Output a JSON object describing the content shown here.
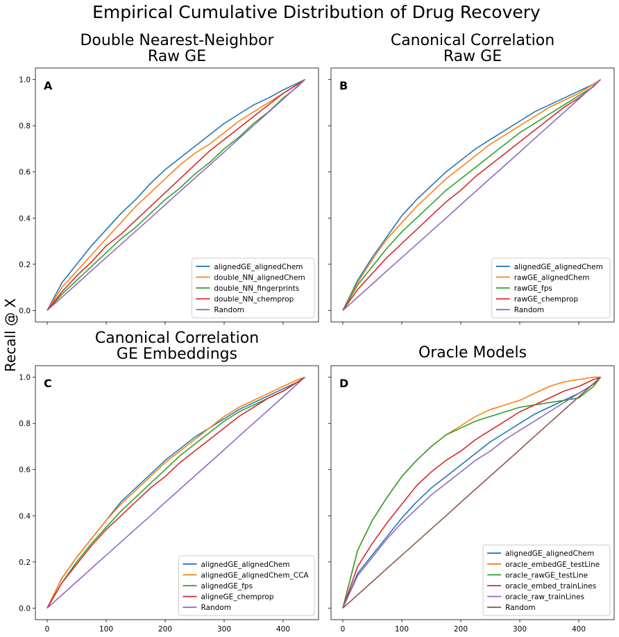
{
  "figure": {
    "title": "Empirical Cumulative Distribution of Drug Recovery",
    "ylabel": "Recall @ X"
  },
  "colors": {
    "blue": "#1f77b4",
    "orange": "#ff7f0e",
    "green": "#2ca02c",
    "red": "#d62728",
    "purple": "#9467bd",
    "brown": "#8c564b"
  },
  "chart_data": [
    {
      "type": "line",
      "panel": "A",
      "title": [
        "Double Nearest-Neighbor",
        "Raw GE"
      ],
      "xlim": [
        -20,
        460
      ],
      "ylim": [
        -0.05,
        1.05
      ],
      "xticks": [
        0,
        100,
        200,
        300,
        400
      ],
      "yticks": [
        "0.0",
        "0.2",
        "0.4",
        "0.6",
        "0.8",
        "1.0"
      ],
      "show_xticklabels": false,
      "show_yticklabels": true,
      "legend": "lower-right",
      "x": [
        0,
        25,
        50,
        75,
        100,
        125,
        150,
        175,
        200,
        225,
        250,
        275,
        300,
        325,
        350,
        375,
        400,
        425,
        437
      ],
      "series": [
        {
          "name": "alignedGE_alignedChem",
          "color": "#1f77b4",
          "values": [
            0,
            0.12,
            0.2,
            0.28,
            0.35,
            0.42,
            0.48,
            0.55,
            0.61,
            0.66,
            0.71,
            0.76,
            0.81,
            0.85,
            0.89,
            0.92,
            0.955,
            0.985,
            1.0
          ]
        },
        {
          "name": "double_NN_alignedChem",
          "color": "#ff7f0e",
          "values": [
            0,
            0.1,
            0.17,
            0.24,
            0.31,
            0.38,
            0.45,
            0.51,
            0.57,
            0.63,
            0.68,
            0.72,
            0.77,
            0.82,
            0.86,
            0.9,
            0.94,
            0.98,
            1.0
          ]
        },
        {
          "name": "double_NN_fingerprints",
          "color": "#2ca02c",
          "values": [
            0,
            0.07,
            0.13,
            0.19,
            0.25,
            0.31,
            0.36,
            0.42,
            0.48,
            0.53,
            0.59,
            0.64,
            0.7,
            0.75,
            0.81,
            0.86,
            0.92,
            0.97,
            1.0
          ]
        },
        {
          "name": "double_NN_chemprop",
          "color": "#d62728",
          "values": [
            0,
            0.08,
            0.15,
            0.21,
            0.28,
            0.33,
            0.39,
            0.45,
            0.51,
            0.57,
            0.63,
            0.69,
            0.74,
            0.79,
            0.84,
            0.89,
            0.94,
            0.98,
            1.0
          ]
        },
        {
          "name": "Random",
          "color": "#9467bd",
          "values": [
            0,
            0.057,
            0.114,
            0.172,
            0.229,
            0.286,
            0.343,
            0.4,
            0.458,
            0.515,
            0.572,
            0.629,
            0.686,
            0.744,
            0.801,
            0.858,
            0.915,
            0.973,
            1.0
          ]
        }
      ]
    },
    {
      "type": "line",
      "panel": "B",
      "title": [
        "Canonical Correlation",
        "Raw GE"
      ],
      "xlim": [
        -20,
        460
      ],
      "ylim": [
        -0.05,
        1.05
      ],
      "xticks": [
        0,
        100,
        200,
        300,
        400
      ],
      "yticks": [
        "0.0",
        "0.2",
        "0.4",
        "0.6",
        "0.8",
        "1.0"
      ],
      "show_xticklabels": false,
      "show_yticklabels": false,
      "legend": "lower-right",
      "x": [
        0,
        25,
        50,
        75,
        100,
        125,
        150,
        175,
        200,
        225,
        250,
        275,
        300,
        325,
        350,
        375,
        400,
        425,
        437
      ],
      "series": [
        {
          "name": "alignedGE_alignedChem",
          "color": "#1f77b4",
          "values": [
            0,
            0.13,
            0.23,
            0.32,
            0.41,
            0.48,
            0.54,
            0.6,
            0.65,
            0.7,
            0.74,
            0.78,
            0.82,
            0.86,
            0.89,
            0.92,
            0.95,
            0.98,
            1.0
          ]
        },
        {
          "name": "rawGE_alignedChem",
          "color": "#ff7f0e",
          "values": [
            0,
            0.12,
            0.22,
            0.31,
            0.38,
            0.45,
            0.51,
            0.57,
            0.62,
            0.67,
            0.72,
            0.76,
            0.8,
            0.84,
            0.88,
            0.91,
            0.94,
            0.98,
            1.0
          ]
        },
        {
          "name": "rawGE_fps",
          "color": "#2ca02c",
          "values": [
            0,
            0.11,
            0.19,
            0.27,
            0.34,
            0.4,
            0.46,
            0.52,
            0.57,
            0.62,
            0.67,
            0.72,
            0.77,
            0.81,
            0.85,
            0.89,
            0.93,
            0.97,
            1.0
          ]
        },
        {
          "name": "rawGE_chemprop",
          "color": "#d62728",
          "values": [
            0,
            0.09,
            0.16,
            0.23,
            0.29,
            0.35,
            0.41,
            0.47,
            0.52,
            0.58,
            0.63,
            0.68,
            0.73,
            0.78,
            0.83,
            0.88,
            0.92,
            0.97,
            1.0
          ]
        },
        {
          "name": "Random",
          "color": "#9467bd",
          "values": [
            0,
            0.057,
            0.114,
            0.172,
            0.229,
            0.286,
            0.343,
            0.4,
            0.458,
            0.515,
            0.572,
            0.629,
            0.686,
            0.744,
            0.801,
            0.858,
            0.915,
            0.973,
            1.0
          ]
        }
      ]
    },
    {
      "type": "line",
      "panel": "C",
      "title": [
        "Canonical Correlation",
        "GE Embeddings"
      ],
      "xlim": [
        -20,
        460
      ],
      "ylim": [
        -0.05,
        1.05
      ],
      "xticks": [
        0,
        100,
        200,
        300,
        400
      ],
      "yticks": [
        "0.0",
        "0.2",
        "0.4",
        "0.6",
        "0.8",
        "1.0"
      ],
      "show_xticklabels": true,
      "show_yticklabels": true,
      "legend": "lower-right",
      "x": [
        0,
        25,
        50,
        75,
        100,
        125,
        150,
        175,
        200,
        225,
        250,
        275,
        300,
        325,
        350,
        375,
        400,
        425,
        437
      ],
      "series": [
        {
          "name": "alignedGE_alignedChem",
          "color": "#1f77b4",
          "values": [
            0,
            0.13,
            0.22,
            0.3,
            0.38,
            0.46,
            0.52,
            0.58,
            0.64,
            0.69,
            0.74,
            0.78,
            0.82,
            0.86,
            0.89,
            0.92,
            0.95,
            0.98,
            1.0
          ]
        },
        {
          "name": "alignedGE_alignedChem_CCA",
          "color": "#ff7f0e",
          "values": [
            0,
            0.13,
            0.22,
            0.3,
            0.38,
            0.45,
            0.51,
            0.57,
            0.63,
            0.68,
            0.73,
            0.78,
            0.83,
            0.87,
            0.9,
            0.93,
            0.96,
            0.99,
            1.0
          ]
        },
        {
          "name": "alignedGE_fps",
          "color": "#2ca02c",
          "values": [
            0,
            0.11,
            0.2,
            0.28,
            0.35,
            0.42,
            0.48,
            0.54,
            0.6,
            0.66,
            0.71,
            0.76,
            0.81,
            0.85,
            0.88,
            0.91,
            0.94,
            0.98,
            1.0
          ]
        },
        {
          "name": "aligneGE_chemprop",
          "color": "#d62728",
          "values": [
            0,
            0.11,
            0.19,
            0.27,
            0.34,
            0.4,
            0.46,
            0.52,
            0.57,
            0.63,
            0.68,
            0.73,
            0.78,
            0.83,
            0.87,
            0.91,
            0.94,
            0.98,
            1.0
          ]
        },
        {
          "name": "Random",
          "color": "#9467bd",
          "values": [
            0,
            0.057,
            0.114,
            0.172,
            0.229,
            0.286,
            0.343,
            0.4,
            0.458,
            0.515,
            0.572,
            0.629,
            0.686,
            0.744,
            0.801,
            0.858,
            0.915,
            0.973,
            1.0
          ]
        }
      ]
    },
    {
      "type": "line",
      "panel": "D",
      "title": [
        "Oracle Models"
      ],
      "xlim": [
        -20,
        460
      ],
      "ylim": [
        -0.05,
        1.05
      ],
      "xticks": [
        0,
        100,
        200,
        300,
        400
      ],
      "yticks": [
        "0.0",
        "0.2",
        "0.4",
        "0.6",
        "0.8",
        "1.0"
      ],
      "show_xticklabels": true,
      "show_yticklabels": false,
      "legend": "lower-right",
      "x": [
        0,
        25,
        50,
        75,
        100,
        125,
        150,
        175,
        200,
        225,
        250,
        275,
        300,
        325,
        350,
        375,
        400,
        425,
        437
      ],
      "series": [
        {
          "name": "alignedGE_alignedChem",
          "color": "#1f77b4",
          "values": [
            0,
            0.15,
            0.23,
            0.31,
            0.39,
            0.46,
            0.52,
            0.57,
            0.62,
            0.67,
            0.72,
            0.76,
            0.8,
            0.84,
            0.87,
            0.9,
            0.93,
            0.97,
            1.0
          ]
        },
        {
          "name": "oracle_embedGE_testLine",
          "color": "#ff7f0e",
          "values": [
            0,
            0.25,
            0.38,
            0.48,
            0.57,
            0.64,
            0.7,
            0.75,
            0.79,
            0.83,
            0.86,
            0.88,
            0.9,
            0.93,
            0.96,
            0.98,
            0.99,
            1.0,
            1.0
          ]
        },
        {
          "name": "oracle_rawGE_testLine",
          "color": "#2ca02c",
          "values": [
            0,
            0.25,
            0.38,
            0.48,
            0.57,
            0.64,
            0.7,
            0.75,
            0.78,
            0.81,
            0.83,
            0.85,
            0.87,
            0.88,
            0.89,
            0.9,
            0.91,
            0.96,
            1.0
          ]
        },
        {
          "name": "oracle_embed_trainLines",
          "color": "#d62728",
          "values": [
            0,
            0.18,
            0.28,
            0.37,
            0.45,
            0.53,
            0.59,
            0.64,
            0.68,
            0.73,
            0.77,
            0.81,
            0.85,
            0.88,
            0.91,
            0.94,
            0.96,
            0.99,
            1.0
          ]
        },
        {
          "name": "oracle_raw_trainLines",
          "color": "#9467bd",
          "values": [
            0,
            0.14,
            0.22,
            0.3,
            0.37,
            0.43,
            0.49,
            0.54,
            0.59,
            0.64,
            0.68,
            0.73,
            0.77,
            0.81,
            0.85,
            0.89,
            0.93,
            0.97,
            1.0
          ]
        },
        {
          "name": "Random",
          "color": "#8c564b",
          "values": [
            0,
            0.057,
            0.114,
            0.172,
            0.229,
            0.286,
            0.343,
            0.4,
            0.458,
            0.515,
            0.572,
            0.629,
            0.686,
            0.744,
            0.801,
            0.858,
            0.915,
            0.973,
            1.0
          ]
        }
      ]
    }
  ]
}
